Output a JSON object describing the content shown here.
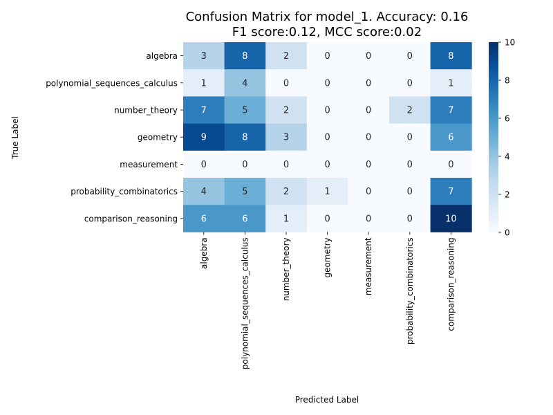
{
  "chart_data": {
    "type": "heatmap",
    "title_line1": "Confusion Matrix for model_1. Accuracy: 0.16",
    "title_line2": "F1 score:0.12, MCC score:0.02",
    "xlabel": "Predicted Label",
    "ylabel": "True Label",
    "x_categories": [
      "algebra",
      "polynomial_sequences_calculus",
      "number_theory",
      "geometry",
      "measurement",
      "probability_combinatorics",
      "comparison_reasoning"
    ],
    "y_categories": [
      "algebra",
      "polynomial_sequences_calculus",
      "number_theory",
      "geometry",
      "measurement",
      "probability_combinatorics",
      "comparison_reasoning"
    ],
    "matrix": [
      [
        3,
        8,
        2,
        0,
        0,
        0,
        8
      ],
      [
        1,
        4,
        0,
        0,
        0,
        0,
        1
      ],
      [
        7,
        5,
        2,
        0,
        0,
        2,
        7
      ],
      [
        9,
        8,
        3,
        0,
        0,
        0,
        6
      ],
      [
        0,
        0,
        0,
        0,
        0,
        0,
        0
      ],
      [
        4,
        5,
        2,
        1,
        0,
        0,
        7
      ],
      [
        6,
        6,
        1,
        0,
        0,
        0,
        10
      ]
    ],
    "colorbar": {
      "min": 0,
      "max": 10,
      "ticks": [
        0,
        2,
        4,
        6,
        8,
        10
      ],
      "colormap": "Blues"
    },
    "colors": {
      "low": "#f7fbff",
      "high": "#08306b"
    }
  }
}
